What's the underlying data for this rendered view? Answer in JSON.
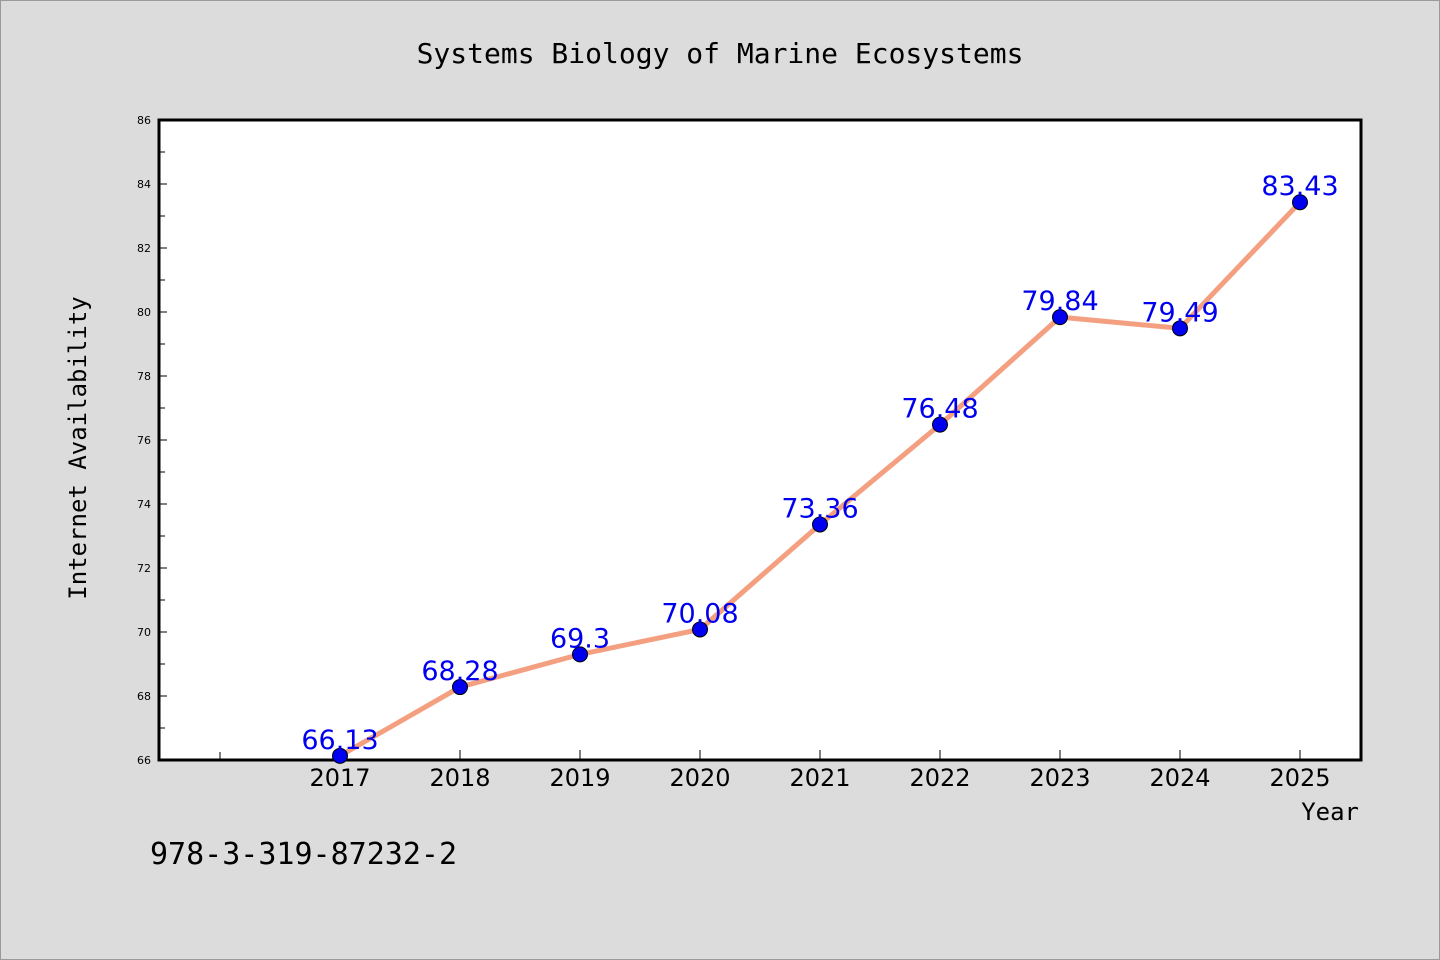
{
  "chart_data": {
    "type": "line",
    "title": "Systems Biology of Marine Ecosystems",
    "xlabel": "Year",
    "ylabel": "Internet Availability",
    "categories": [
      "2017",
      "2018",
      "2019",
      "2020",
      "2021",
      "2022",
      "2023",
      "2024",
      "2025"
    ],
    "series": [
      {
        "values": [
          66.13,
          68.28,
          69.3,
          70.08,
          73.36,
          76.48,
          79.84,
          79.49,
          83.43
        ],
        "data_labels": [
          "66.13",
          "68.28",
          "69.3",
          "70.08",
          "73.36",
          "76.48",
          "79.84",
          "79.49",
          "83.43"
        ],
        "line_color": "#f4a080",
        "marker_color": "#0000ee"
      }
    ],
    "ylim": [
      66,
      86
    ],
    "yticks": [
      "66",
      "68",
      "70",
      "72",
      "74",
      "76",
      "78",
      "80",
      "82",
      "84",
      "86"
    ],
    "grid": false,
    "legend": "none",
    "label_color": "#0000ee"
  },
  "footer": {
    "isbn": "978-3-319-87232-2"
  }
}
